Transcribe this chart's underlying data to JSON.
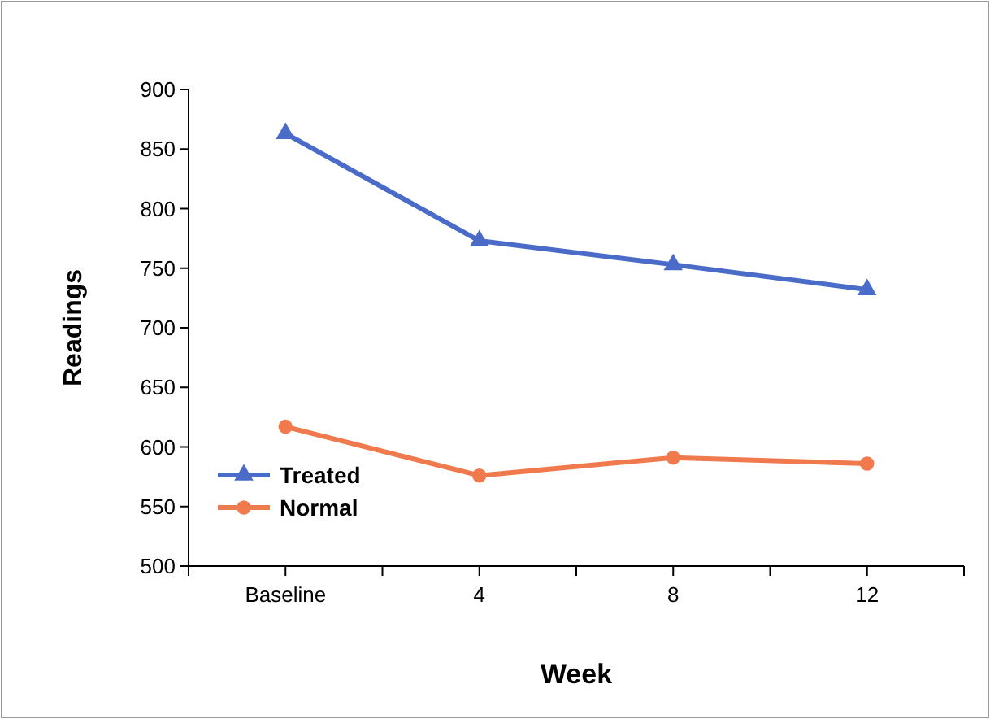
{
  "chart_data": {
    "type": "line",
    "xlabel": "Week",
    "ylabel": "Readings",
    "categories": [
      "Baseline",
      "4",
      "8",
      "12"
    ],
    "series": [
      {
        "name": "Treated",
        "color": "#4a6cc8",
        "marker": "triangle",
        "values": [
          863,
          773,
          753,
          732
        ]
      },
      {
        "name": "Normal",
        "color": "#f07a4e",
        "marker": "circle",
        "values": [
          617,
          576,
          591,
          586
        ]
      }
    ],
    "ylim": [
      500,
      900
    ],
    "yticks": [
      500,
      550,
      600,
      650,
      700,
      750,
      800,
      850,
      900
    ],
    "grid": false,
    "legend": "bottom left"
  }
}
